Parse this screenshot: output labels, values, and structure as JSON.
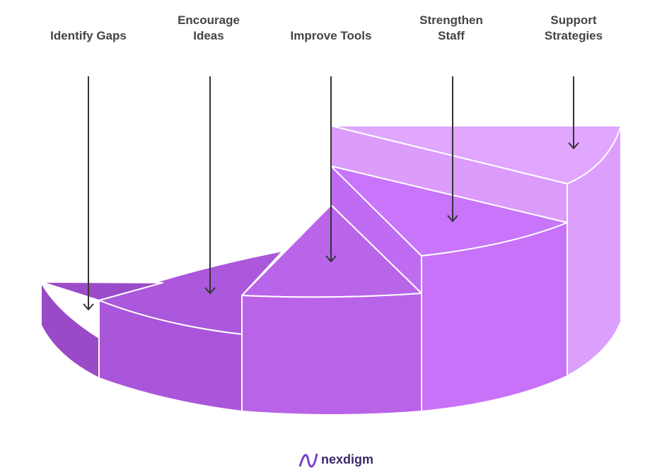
{
  "labels": [
    "Identify Gaps",
    "Encourage Ideas",
    "Improve Tools",
    "Strengthen Staff",
    "Support Strategies"
  ],
  "brand": "nexdigm"
}
